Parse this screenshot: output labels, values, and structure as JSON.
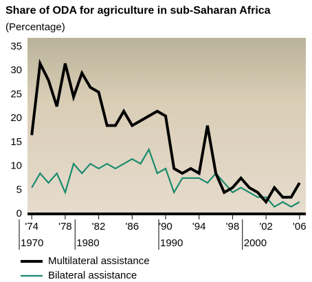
{
  "chart_data": {
    "type": "line",
    "title": "Share of ODA for agriculture in sub-Saharan Africa",
    "subtitle": "(Percentage)",
    "x": [
      1974,
      1975,
      1976,
      1977,
      1978,
      1979,
      1980,
      1981,
      1982,
      1983,
      1984,
      1985,
      1986,
      1987,
      1988,
      1989,
      1990,
      1991,
      1992,
      1993,
      1994,
      1995,
      1996,
      1997,
      1998,
      1999,
      2000,
      2001,
      2002,
      2003,
      2004,
      2005,
      2006
    ],
    "series": [
      {
        "name": "Multilateral assistance",
        "color": "#000000",
        "values": [
          16.5,
          31.5,
          28,
          22.5,
          31.5,
          24.5,
          29.5,
          26.5,
          25.5,
          18.5,
          18.5,
          21.5,
          18.5,
          19.5,
          20.5,
          21.5,
          20.5,
          9.5,
          8.5,
          9.5,
          8.5,
          18.5,
          8.5,
          4.5,
          5.5,
          7.5,
          5.5,
          4.5,
          2.5,
          5.5,
          3.5,
          3.5,
          6.5
        ]
      },
      {
        "name": "Bilateral assistance",
        "color": "#1a8a6e",
        "values": [
          5.5,
          8.5,
          6.5,
          8.5,
          4.5,
          10.5,
          8.5,
          10.5,
          9.5,
          10.5,
          9.5,
          10.5,
          11.5,
          10.5,
          13.5,
          8.5,
          9.5,
          4.5,
          7.5,
          7.5,
          7.5,
          6.5,
          8.5,
          6.5,
          4.5,
          5.5,
          4.5,
          3.5,
          3.5,
          1.5,
          2.5,
          1.5,
          2.5
        ]
      }
    ],
    "xlim": [
      1973,
      2007
    ],
    "ylim": [
      0,
      35
    ],
    "yticks": [
      0,
      5,
      10,
      15,
      20,
      25,
      30,
      35
    ],
    "xticks": [
      {
        "value": 1974,
        "label": "'74"
      },
      {
        "value": 1978,
        "label": "'78"
      },
      {
        "value": 1982,
        "label": "'82"
      },
      {
        "value": 1986,
        "label": "'86"
      },
      {
        "value": 1990,
        "label": "'90"
      },
      {
        "value": 1994,
        "label": "'94"
      },
      {
        "value": 1998,
        "label": "'98"
      },
      {
        "value": 2002,
        "label": "'02"
      },
      {
        "value": 2006,
        "label": "'06"
      }
    ],
    "x_decades": [
      {
        "value": 1970,
        "label": "1970"
      },
      {
        "value": 1980,
        "label": "1980"
      },
      {
        "value": 1990,
        "label": "1990"
      },
      {
        "value": 2000,
        "label": "2000"
      }
    ]
  }
}
